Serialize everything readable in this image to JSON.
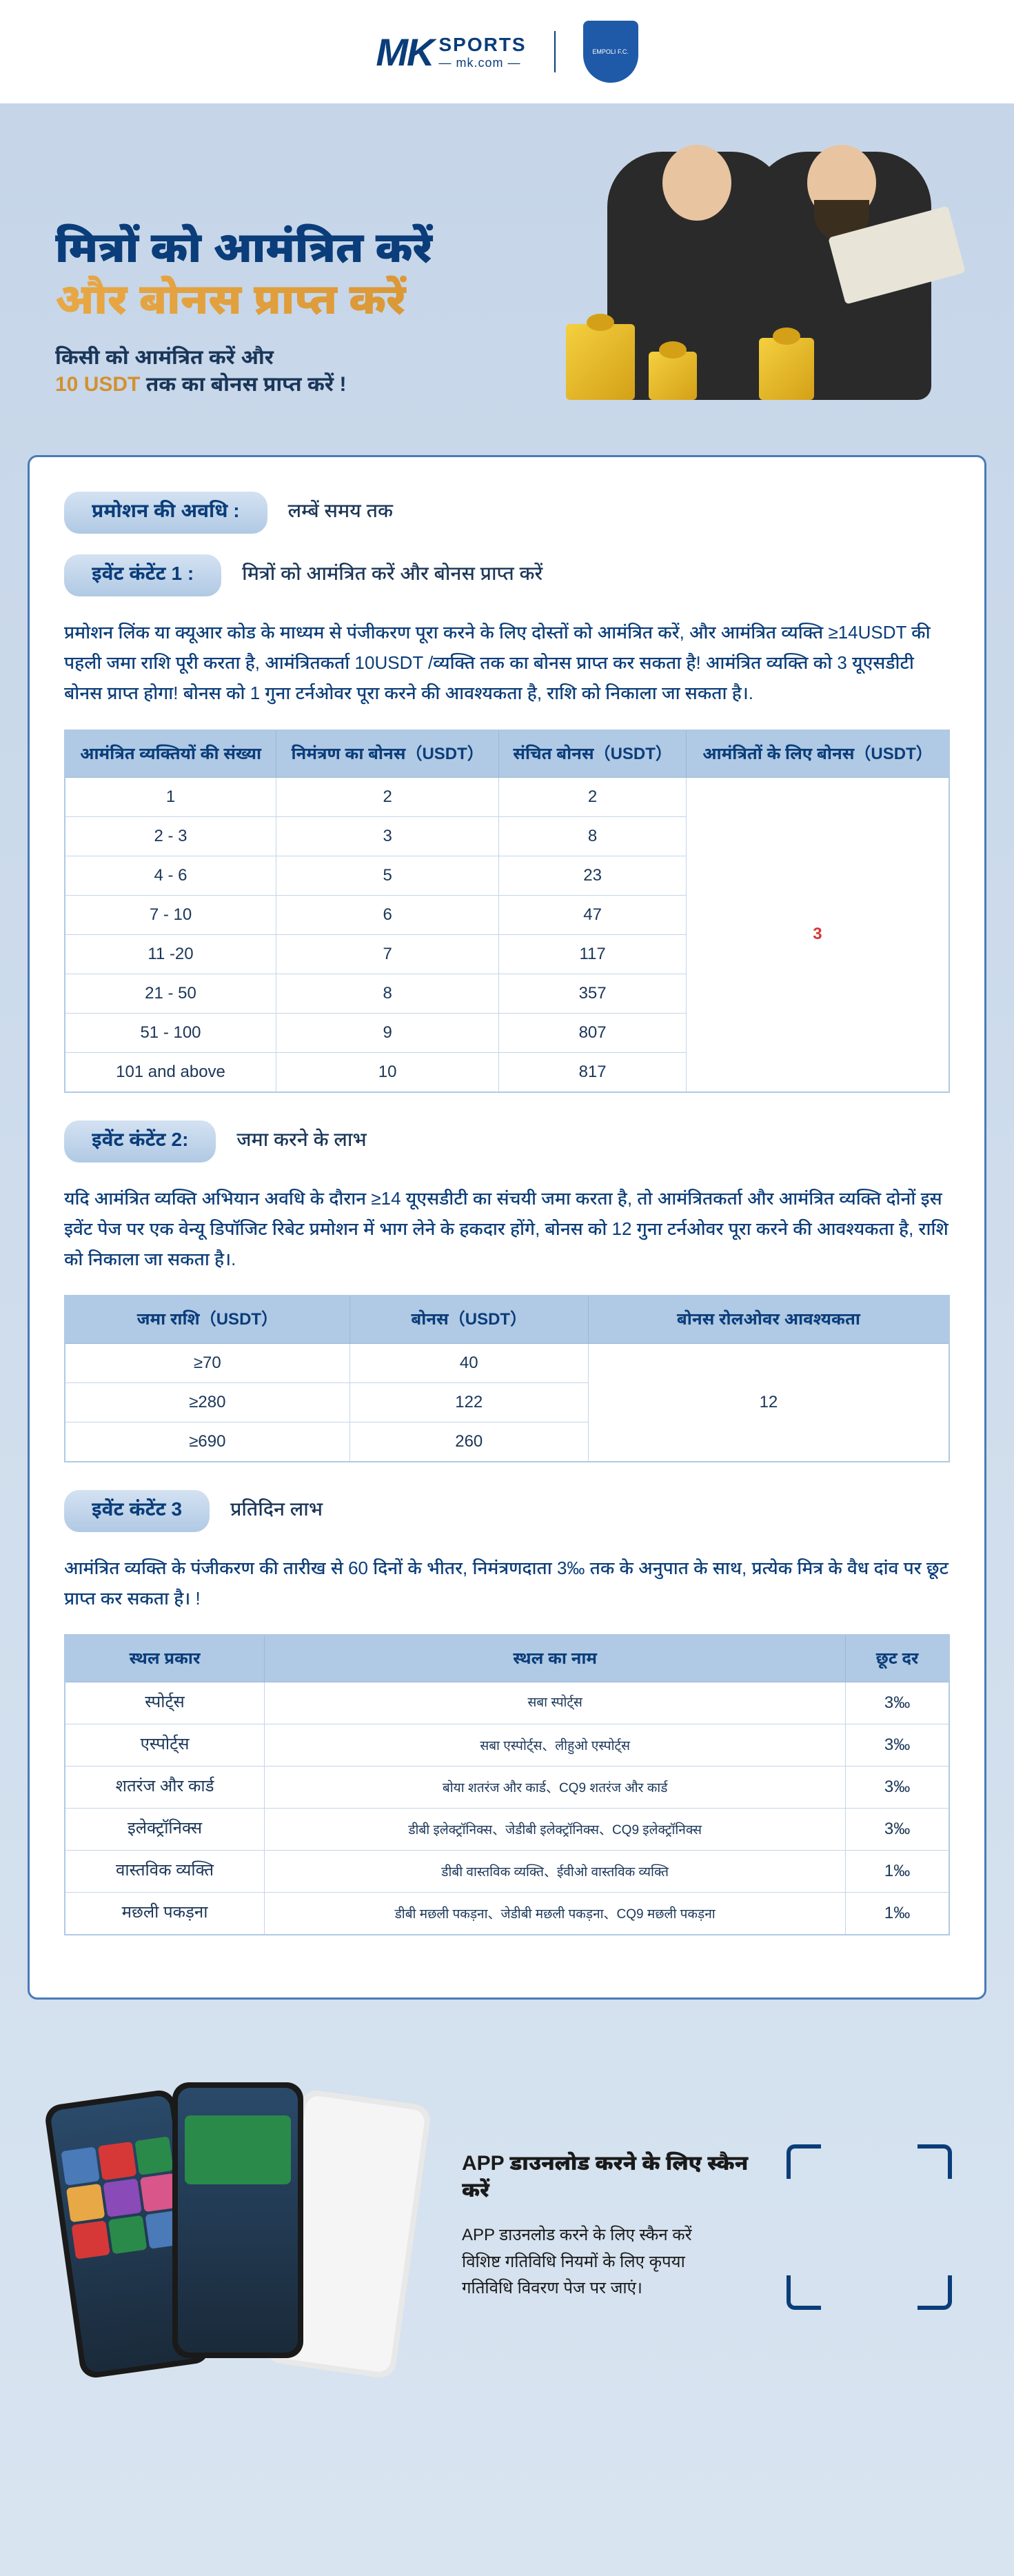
{
  "header": {
    "logo_mk": "MK",
    "logo_sports": "SPORTS",
    "logo_domain": "— mk.com —",
    "badge_text": "EMPOLI F.C."
  },
  "hero": {
    "title_line_1": "मित्रों को आमंत्रित करें",
    "title_line_2": "और बोनस प्राप्त करें",
    "sub_line_1": "किसी को आमंत्रित करें और",
    "sub_usdt": "10 USDT",
    "sub_line_2_rest": " तक का बोनस प्राप्त करें !"
  },
  "sections": {
    "duration": {
      "badge": "प्रमोशन की अवधि :",
      "label": "लम्बें समय तक"
    },
    "event1": {
      "badge": "इवेंट कंटेंट 1 :",
      "label": "मित्रों को आमंत्रित करें और बोनस प्राप्त करें",
      "body": "प्रमोशन लिंक या क्यूआर कोड के माध्यम से पंजीकरण पूरा करने के लिए दोस्तों को आमंत्रित करें, और आमंत्रित व्यक्ति ≥14USDT की पहली जमा राशि पूरी करता है, आमंत्रितकर्ता 10USDT /व्यक्ति तक का बोनस प्राप्त कर सकता है! आमंत्रित व्यक्ति को 3 यूएसडीटी बोनस प्राप्त होगा! बोनस को 1 गुना टर्नओवर पूरा करने की आवश्यकता है, राशि को निकाला जा सकता है।."
    },
    "event2": {
      "badge": "इवेंट कंटेंट 2:",
      "label": "जमा करने के लाभ",
      "body": "यदि आमंत्रित व्यक्ति अभियान अवधि के दौरान ≥14 यूएसडीटी का संचयी जमा करता है, तो आमंत्रितकर्ता और आमंत्रित व्यक्ति दोनों इस इवेंट पेज पर एक वेन्यू डिपॉजिट रिबेट प्रमोशन में भाग लेने के हकदार होंगे, बोनस को 12 गुना टर्नओवर पूरा करने की आवश्यकता है, राशि को निकाला जा सकता है।."
    },
    "event3": {
      "badge": "इवेंट कंटेंट 3",
      "label": "प्रतिदिन लाभ",
      "body": "आमंत्रित व्यक्ति के पंजीकरण की तारीख से 60 दिनों के भीतर, निमंत्रणदाता 3‰ तक के अनुपात के साथ, प्रत्येक मित्र के वैध दांव पर छूट प्राप्त कर सकता है। !"
    }
  },
  "table1": {
    "headers": [
      "आमंत्रित व्यक्तियों की संख्या",
      "निमंत्रण का बोनस（USDT）",
      "संचित बोनस（USDT）",
      "आमंत्रितों के लिए बोनस（USDT）"
    ],
    "rows": [
      [
        "1",
        "2",
        "2"
      ],
      [
        "2 - 3",
        "3",
        "8"
      ],
      [
        "4 - 6",
        "5",
        "23"
      ],
      [
        "7 - 10",
        "6",
        "47"
      ],
      [
        "11 -20",
        "7",
        "117"
      ],
      [
        "21 - 50",
        "8",
        "357"
      ],
      [
        "51 - 100",
        "9",
        "807"
      ],
      [
        "101 and above",
        "10",
        "817"
      ]
    ],
    "merged_last": "3"
  },
  "table2": {
    "headers": [
      "जमा राशि（USDT）",
      "बोनस（USDT）",
      "बोनस रोलओवर आवश्यकता"
    ],
    "rows": [
      [
        "≥70",
        "40"
      ],
      [
        "≥280",
        "122"
      ],
      [
        "≥690",
        "260"
      ]
    ],
    "merged_last": "12"
  },
  "table3": {
    "headers": [
      "स्थल प्रकार",
      "स्थल का नाम",
      "छूट दर"
    ],
    "rows": [
      [
        "स्पोर्ट्स",
        "सबा स्पोर्ट्स",
        "3‰"
      ],
      [
        "एस्पोर्ट्स",
        "सबा एस्पोर्ट्स、लीहुओ एस्पोर्ट्स",
        "3‰"
      ],
      [
        "शतरंज और कार्ड",
        "बोया शतरंज और कार्ड、CQ9 शतरंज और कार्ड",
        "3‰"
      ],
      [
        "इलेक्ट्रॉनिक्स",
        "डीबी इलेक्ट्रॉनिक्स、जेडीबी इलेक्ट्रॉनिक्स、CQ9 इलेक्ट्रॉनिक्स",
        "3‰"
      ],
      [
        "वास्तविक व्यक्ति",
        "डीबी वास्तविक व्यक्ति、ईवीओ वास्तविक व्यक्ति",
        "1‰"
      ],
      [
        "मछली पकड़ना",
        "डीबी मछली पकड़ना、जेडीबी मछली पकड़ना、CQ9 मछली पकड़ना",
        "1‰"
      ]
    ]
  },
  "download": {
    "title": "APP  डाउनलोड करने के लिए स्कैन करें",
    "line1": "APP  डाउनलोड करने के लिए स्कैन करें",
    "line2": "विशिष्ट गतिविधि नियमों के लिए कृपया",
    "line3": "गतिविधि विवरण पेज पर जाएं।"
  }
}
